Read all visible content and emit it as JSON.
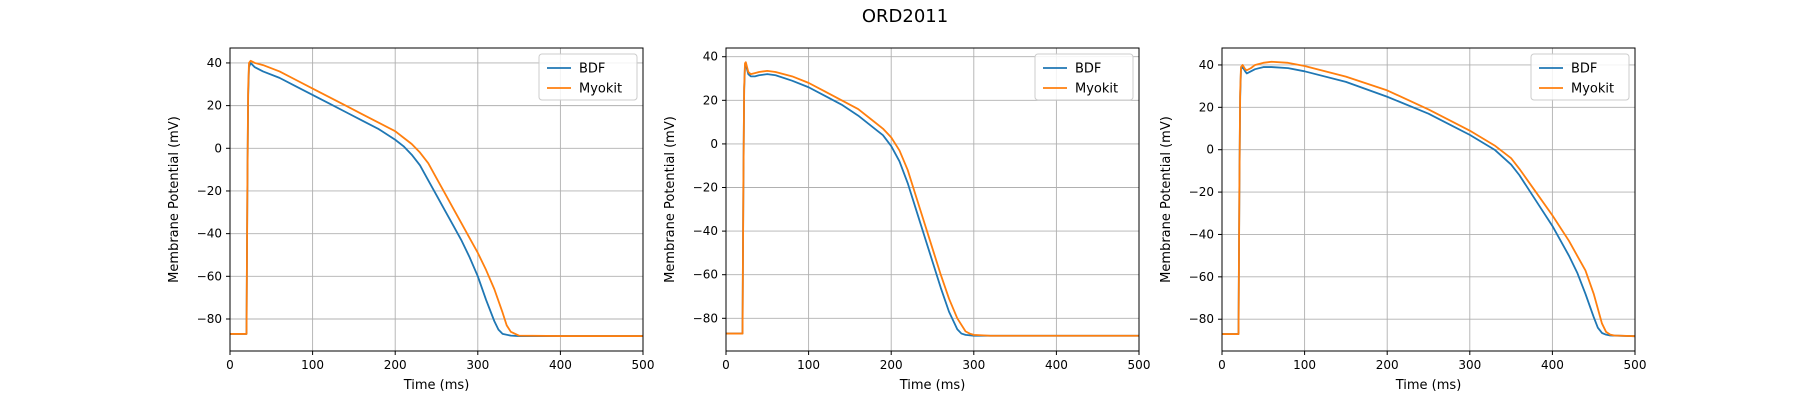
{
  "figure": {
    "title": "ORD2011"
  },
  "colors": {
    "bdf": "#1f77b4",
    "myokit": "#ff7f0e"
  },
  "chart_data": [
    {
      "type": "line",
      "xlabel": "Time (ms)",
      "ylabel": "Membrane Potential (mV)",
      "xlim": [
        0,
        500
      ],
      "ylim": [
        -95,
        47
      ],
      "xticks": [
        0,
        100,
        200,
        300,
        400,
        500
      ],
      "yticks": [
        -80,
        -60,
        -40,
        -20,
        0,
        20,
        40
      ],
      "grid": true,
      "legend": "top-right",
      "series": [
        {
          "name": "BDF",
          "x": [
            0,
            19,
            20,
            21,
            22,
            23,
            25,
            30,
            40,
            60,
            80,
            100,
            120,
            140,
            160,
            180,
            200,
            210,
            220,
            230,
            240,
            250,
            260,
            270,
            280,
            290,
            300,
            310,
            320,
            325,
            330,
            340,
            350,
            400,
            450,
            500
          ],
          "y": [
            -87,
            -87,
            -87,
            -20,
            25,
            38,
            40,
            38,
            36,
            33,
            29,
            25,
            21,
            17,
            13,
            9,
            4,
            1,
            -3,
            -8,
            -15,
            -22,
            -29,
            -36,
            -43,
            -51,
            -60,
            -71,
            -81,
            -85,
            -87,
            -87.8,
            -88,
            -88,
            -88,
            -88
          ]
        },
        {
          "name": "Myokit",
          "x": [
            0,
            19,
            20,
            21,
            22,
            23,
            25,
            30,
            40,
            60,
            80,
            100,
            120,
            140,
            160,
            180,
            200,
            210,
            220,
            230,
            240,
            250,
            260,
            270,
            280,
            290,
            300,
            310,
            320,
            330,
            335,
            340,
            350,
            400,
            450,
            500
          ],
          "y": [
            -87,
            -87,
            -87,
            -20,
            28,
            40,
            41,
            40,
            39,
            36,
            32,
            28,
            24,
            20,
            16,
            12,
            8,
            5,
            2,
            -2,
            -7,
            -14,
            -21,
            -28,
            -35,
            -42,
            -49,
            -57,
            -66,
            -77,
            -83,
            -86,
            -87.8,
            -88,
            -88,
            -88
          ]
        }
      ]
    },
    {
      "type": "line",
      "xlabel": "Time (ms)",
      "ylabel": "Membrane Potential (mV)",
      "xlim": [
        0,
        500
      ],
      "ylim": [
        -95,
        44
      ],
      "xticks": [
        0,
        100,
        200,
        300,
        400,
        500
      ],
      "yticks": [
        -80,
        -60,
        -40,
        -20,
        0,
        20,
        40
      ],
      "grid": true,
      "legend": "top-right",
      "series": [
        {
          "name": "BDF",
          "x": [
            0,
            19,
            20,
            21,
            22,
            23,
            24,
            25,
            27,
            30,
            35,
            40,
            50,
            60,
            80,
            100,
            120,
            140,
            160,
            180,
            190,
            200,
            210,
            220,
            230,
            240,
            250,
            260,
            270,
            280,
            285,
            290,
            300,
            320,
            400,
            500
          ],
          "y": [
            -87,
            -87,
            -87,
            -20,
            25,
            36,
            37,
            35,
            32,
            31,
            31,
            31.5,
            32,
            31.5,
            29,
            26,
            22,
            18,
            13,
            7,
            4,
            -1,
            -8,
            -18,
            -30,
            -42,
            -54,
            -66,
            -77,
            -85,
            -87,
            -87.6,
            -88,
            -88,
            -88,
            -88
          ]
        },
        {
          "name": "Myokit",
          "x": [
            0,
            19,
            20,
            21,
            22,
            23,
            24,
            25,
            27,
            30,
            35,
            40,
            50,
            60,
            80,
            100,
            120,
            140,
            160,
            180,
            190,
            200,
            210,
            220,
            230,
            240,
            250,
            260,
            270,
            280,
            290,
            295,
            300,
            320,
            400,
            500
          ],
          "y": [
            -87,
            -87,
            -87,
            -20,
            26,
            37,
            37.5,
            36,
            33,
            32,
            32.5,
            33,
            33.5,
            33,
            31,
            28,
            24,
            20,
            16,
            10,
            7,
            3,
            -3,
            -12,
            -24,
            -36,
            -48,
            -60,
            -71,
            -80,
            -86,
            -87,
            -87.6,
            -88,
            -88,
            -88
          ]
        }
      ]
    },
    {
      "type": "line",
      "xlabel": "Time (ms)",
      "ylabel": "Membrane Potential (mV)",
      "xlim": [
        0,
        500
      ],
      "ylim": [
        -95,
        48
      ],
      "xticks": [
        0,
        100,
        200,
        300,
        400,
        500
      ],
      "yticks": [
        -80,
        -60,
        -40,
        -20,
        0,
        20,
        40
      ],
      "grid": true,
      "legend": "top-right",
      "series": [
        {
          "name": "BDF",
          "x": [
            0,
            19,
            20,
            21,
            22,
            23,
            25,
            28,
            30,
            35,
            40,
            50,
            60,
            80,
            100,
            150,
            200,
            250,
            300,
            330,
            350,
            360,
            380,
            400,
            420,
            430,
            440,
            450,
            455,
            460,
            465,
            470,
            500
          ],
          "y": [
            -87,
            -87,
            -87,
            -20,
            25,
            38,
            39,
            37,
            36,
            37,
            38,
            39,
            39,
            38.5,
            37,
            32,
            25,
            17,
            7,
            0,
            -7,
            -12,
            -24,
            -36,
            -50,
            -58,
            -68,
            -79,
            -84,
            -86.5,
            -87.3,
            -87.7,
            -88
          ]
        },
        {
          "name": "Myokit",
          "x": [
            0,
            19,
            20,
            21,
            22,
            23,
            25,
            28,
            30,
            35,
            40,
            50,
            60,
            80,
            100,
            150,
            200,
            250,
            300,
            330,
            350,
            360,
            380,
            400,
            420,
            430,
            440,
            450,
            460,
            465,
            470,
            475,
            500
          ],
          "y": [
            -87,
            -87,
            -87,
            -20,
            27,
            39,
            40,
            38,
            37.5,
            38.5,
            40,
            41,
            41.5,
            41,
            39.5,
            34.5,
            28,
            19,
            9,
            2,
            -4,
            -9,
            -20,
            -31,
            -43,
            -50,
            -57,
            -68,
            -82,
            -86,
            -87.3,
            -87.7,
            -88
          ]
        }
      ]
    }
  ]
}
